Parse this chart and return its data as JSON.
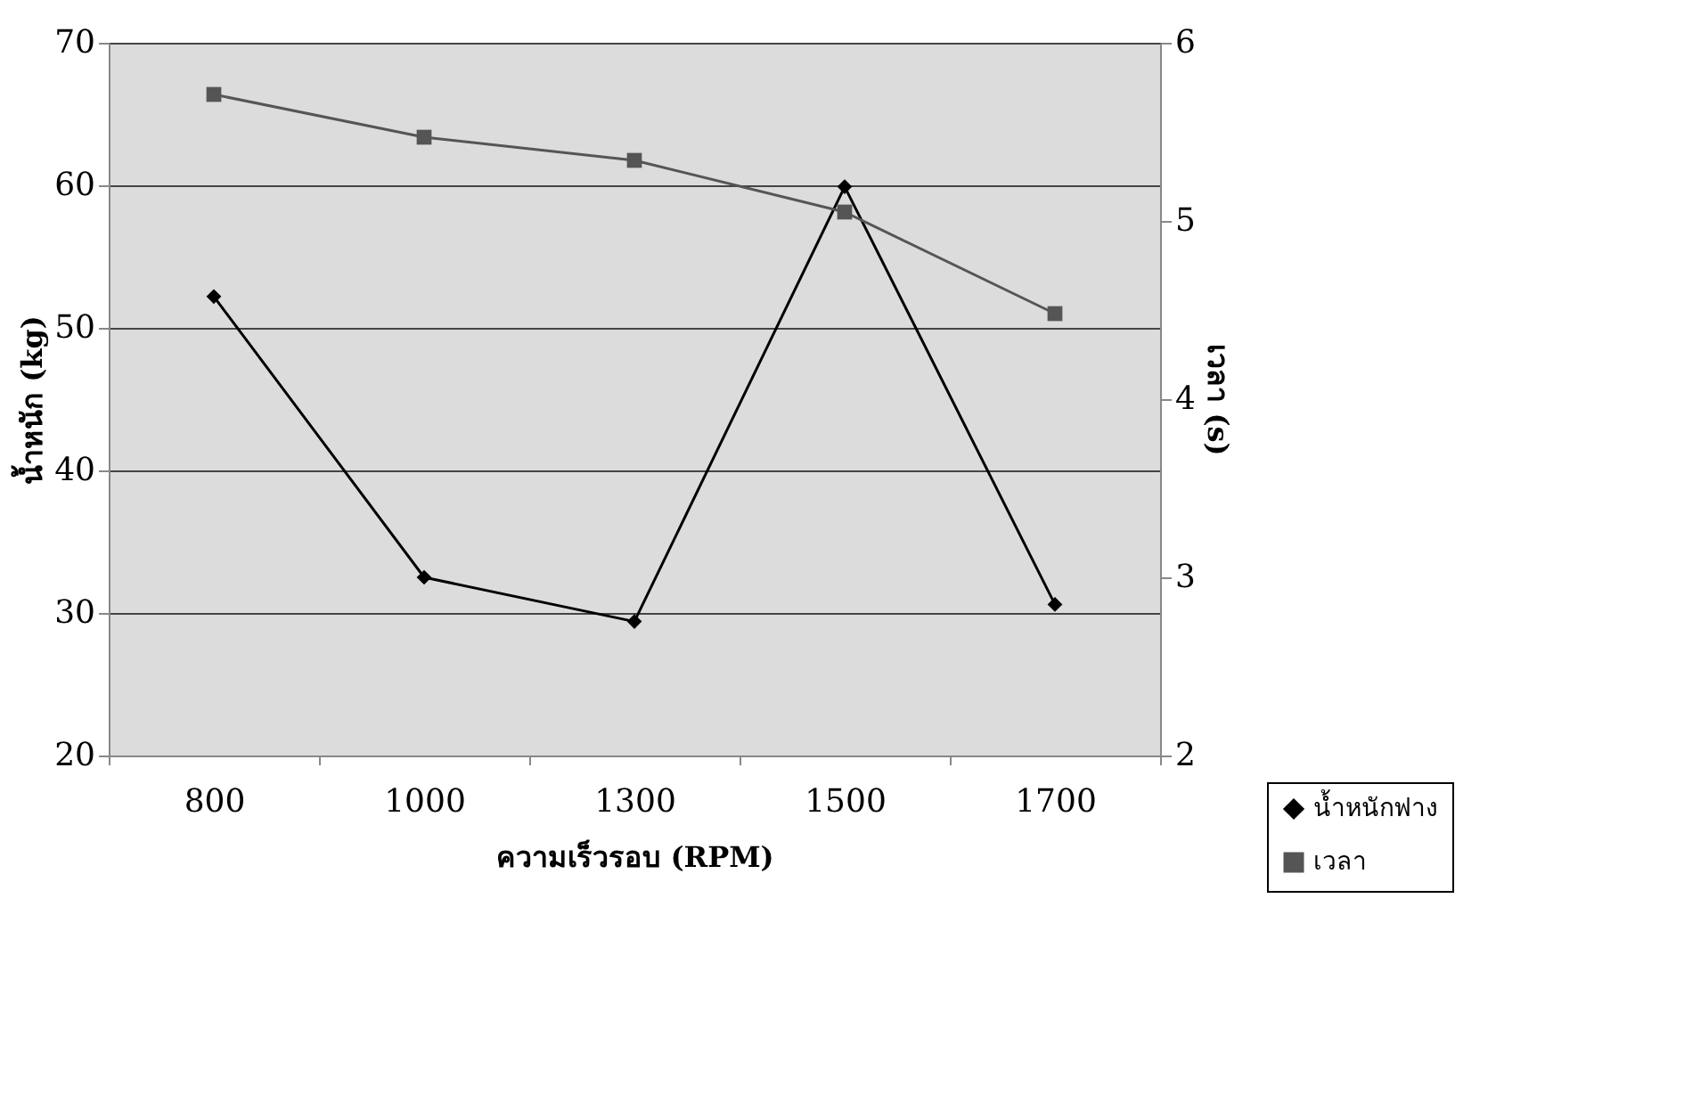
{
  "chart_data": {
    "type": "line",
    "xlabel": "ความเร็วรอบ (RPM)",
    "ylabel": "น้ำหนัก (kg)",
    "y2label": "เวลา (s)",
    "categories": [
      "800",
      "1000",
      "1300",
      "1500",
      "1700"
    ],
    "series": [
      {
        "name": "น้ำหนักฟาง",
        "color": "#000000",
        "marker": "diamond",
        "values": [
          52.2,
          32.5,
          29.4,
          59.9,
          30.6
        ]
      },
      {
        "name": "เวลา",
        "color": "#555555",
        "marker": "square",
        "axis": "y2",
        "values": [
          5.71,
          5.47,
          5.34,
          5.05,
          4.48
        ]
      }
    ],
    "ylim": [
      20,
      70
    ],
    "yticks": [
      20,
      30,
      40,
      50,
      60,
      70
    ],
    "y2lim": [
      2,
      6
    ],
    "y2ticks": [
      2,
      3,
      4,
      5,
      6
    ],
    "grid": "y",
    "legend": "bottom right",
    "line_style": "solid"
  }
}
